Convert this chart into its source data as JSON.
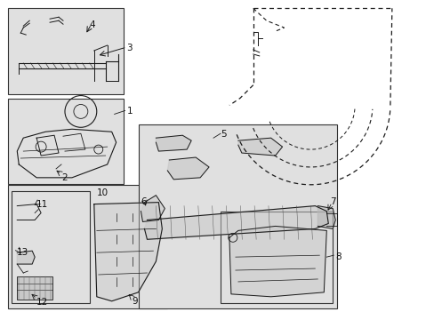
{
  "bg_color": "#ffffff",
  "box_bg": "#e0e0e0",
  "box_edge": "#333333",
  "line_color": "#1a1a1a",
  "label_color": "#111111",
  "fig_w": 4.89,
  "fig_h": 3.6,
  "dpi": 100
}
